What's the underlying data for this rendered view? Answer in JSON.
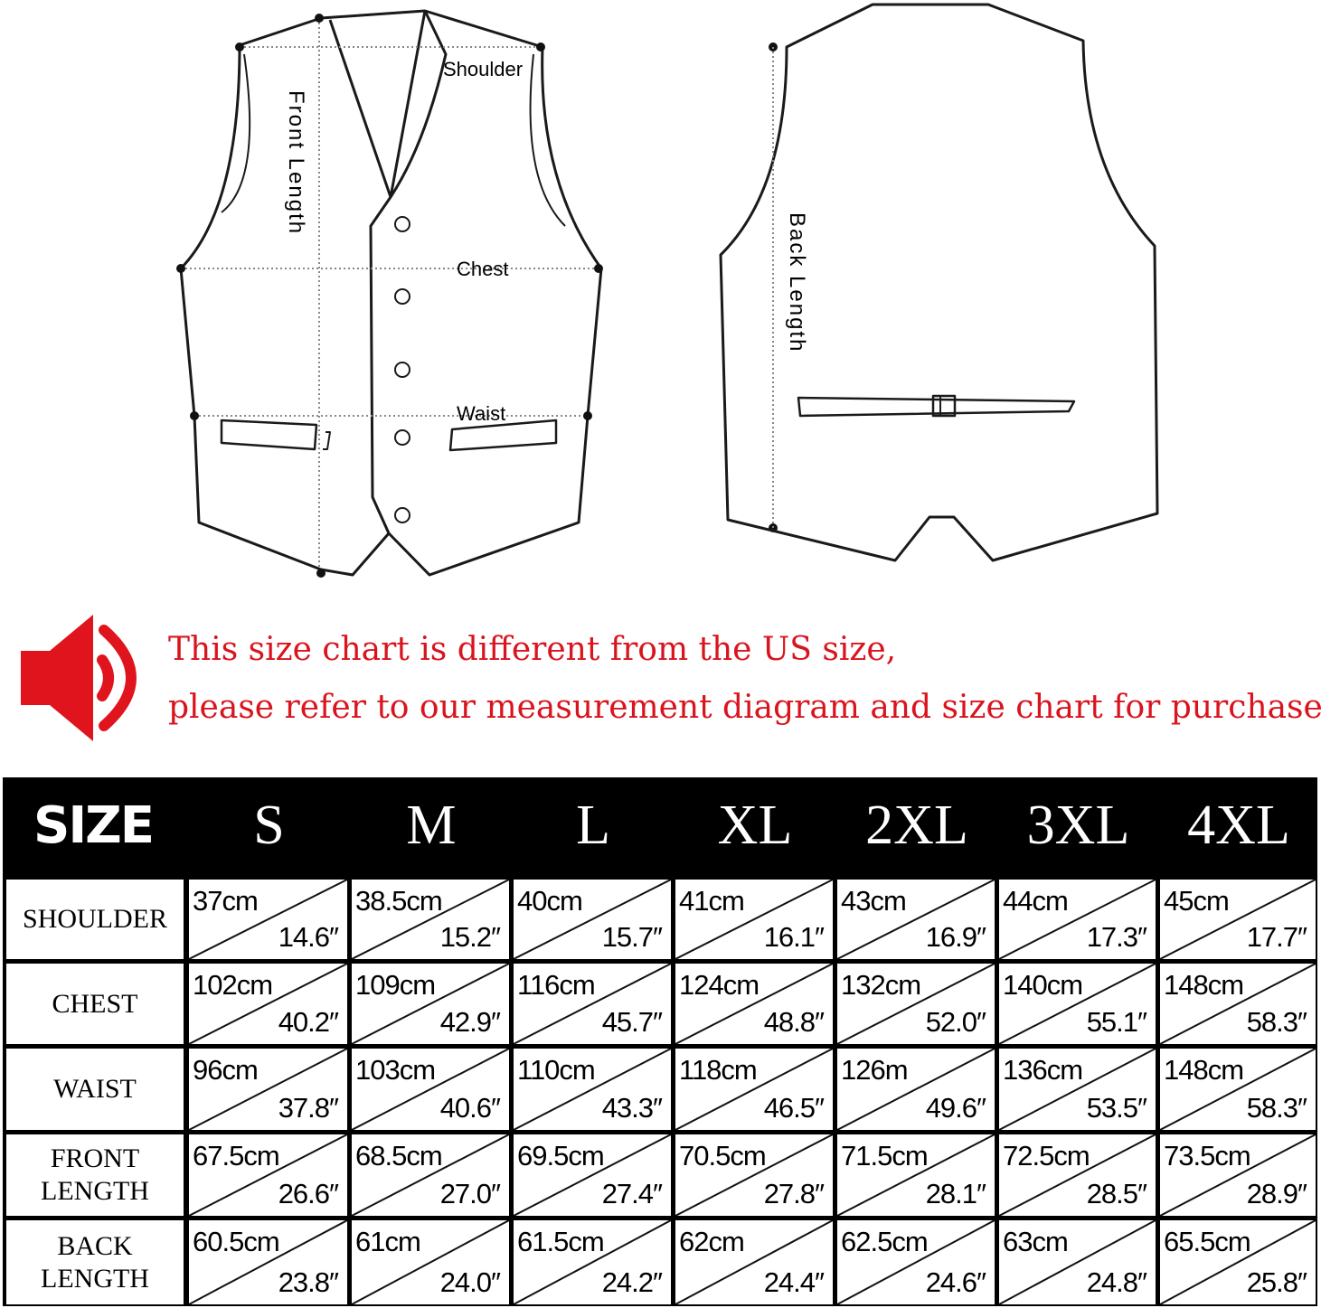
{
  "diagram": {
    "front_labels": {
      "shoulder": "Shoulder",
      "front_length": "Front Length",
      "chest": "Chest",
      "waist": "Waist"
    },
    "back_labels": {
      "back_length": "Back Length"
    }
  },
  "notice": {
    "icon": "speaker-icon",
    "line1": "This size chart is different from the US size,",
    "line2": "please refer to our measurement diagram and size chart for purchase.",
    "color": "#d9141e"
  },
  "size_table": {
    "header": [
      "SIZE",
      "S",
      "M",
      "L",
      "XL",
      "2XL",
      "3XL",
      "4XL"
    ],
    "rows": [
      {
        "label": "SHOULDER",
        "cells": [
          [
            "37cm",
            "14.6″"
          ],
          [
            "38.5cm",
            "15.2″"
          ],
          [
            "40cm",
            "15.7″"
          ],
          [
            "41cm",
            "16.1″"
          ],
          [
            "43cm",
            "16.9″"
          ],
          [
            "44cm",
            "17.3″"
          ],
          [
            "45cm",
            "17.7″"
          ]
        ]
      },
      {
        "label": "CHEST",
        "cells": [
          [
            "102cm",
            "40.2″"
          ],
          [
            "109cm",
            "42.9″"
          ],
          [
            "116cm",
            "45.7″"
          ],
          [
            "124cm",
            "48.8″"
          ],
          [
            "132cm",
            "52.0″"
          ],
          [
            "140cm",
            "55.1″"
          ],
          [
            "148cm",
            "58.3″"
          ]
        ]
      },
      {
        "label": "WAIST",
        "cells": [
          [
            "96cm",
            "37.8″"
          ],
          [
            "103cm",
            "40.6″"
          ],
          [
            "110cm",
            "43.3″"
          ],
          [
            "118cm",
            "46.5″"
          ],
          [
            "126m",
            "49.6″"
          ],
          [
            "136cm",
            "53.5″"
          ],
          [
            "148cm",
            "58.3″"
          ]
        ]
      },
      {
        "label": "FRONT\nLENGTH",
        "cells": [
          [
            "67.5cm",
            "26.6″"
          ],
          [
            "68.5cm",
            "27.0″"
          ],
          [
            "69.5cm",
            "27.4″"
          ],
          [
            "70.5cm",
            "27.8″"
          ],
          [
            "71.5cm",
            "28.1″"
          ],
          [
            "72.5cm",
            "28.5″"
          ],
          [
            "73.5cm",
            "28.9″"
          ]
        ]
      },
      {
        "label": "BACK\nLENGTH",
        "cells": [
          [
            "60.5cm",
            "23.8″"
          ],
          [
            "61cm",
            "24.0″"
          ],
          [
            "61.5cm",
            "24.2″"
          ],
          [
            "62cm",
            "24.4″"
          ],
          [
            "62.5cm",
            "24.6″"
          ],
          [
            "63cm",
            "24.8″"
          ],
          [
            "65.5cm",
            "25.8″"
          ]
        ]
      }
    ]
  }
}
